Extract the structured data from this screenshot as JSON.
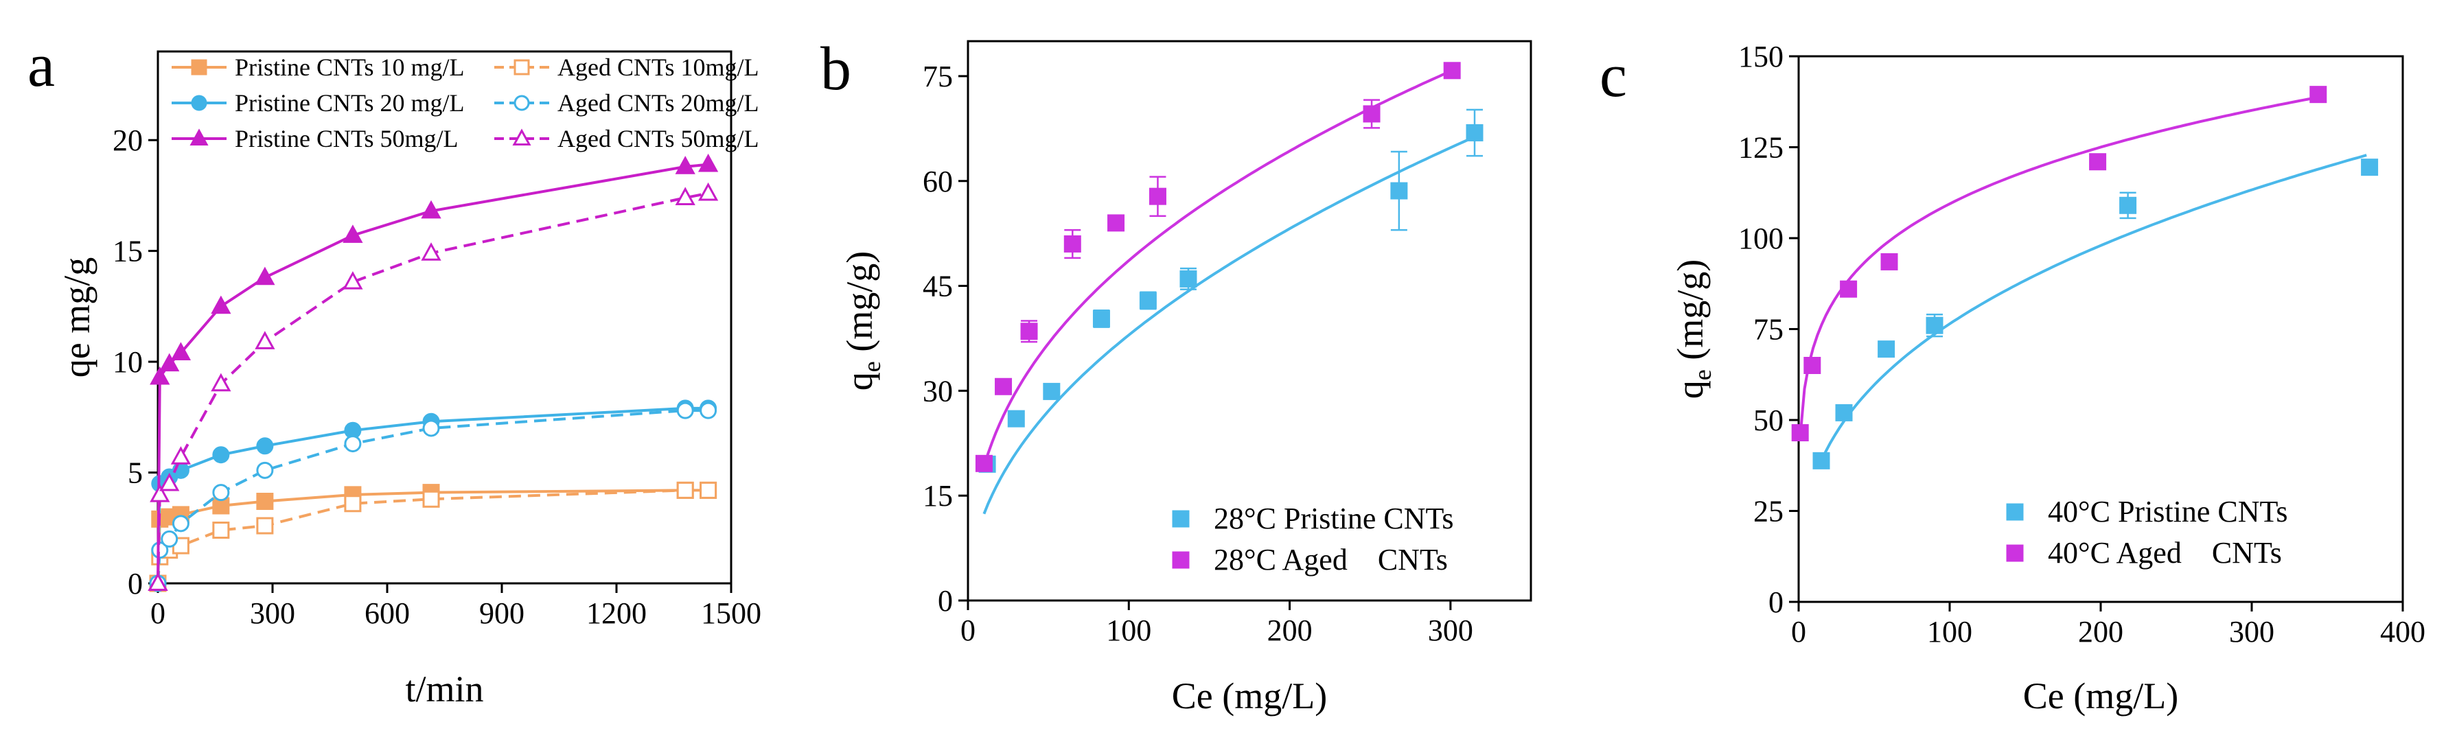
{
  "chart_data": [
    {
      "panel_label": "a",
      "type": "line",
      "xlabel": "t/min",
      "ylabel": "qe mg/g",
      "xlim": [
        0,
        1500
      ],
      "ylim": [
        0,
        24
      ],
      "xticks": [
        "0",
        "300",
        "600",
        "900",
        "1200",
        "1500"
      ],
      "yticks": [
        "0",
        "5",
        "10",
        "15",
        "20"
      ],
      "series": [
        {
          "name": "Pristine CNTs 10 mg/L",
          "color": "#f4a360",
          "marker": "square",
          "filled": true,
          "dashed": false,
          "x": [
            0,
            5,
            30,
            60,
            165,
            280,
            510,
            715,
            1380,
            1440
          ],
          "y": [
            0,
            2.9,
            3.0,
            3.1,
            3.5,
            3.7,
            4.0,
            4.1,
            4.2,
            4.2
          ]
        },
        {
          "name": "Aged CNTs 10mg/L",
          "color": "#f4a360",
          "marker": "square",
          "filled": false,
          "dashed": true,
          "x": [
            0,
            5,
            30,
            60,
            165,
            280,
            510,
            715,
            1380,
            1440
          ],
          "y": [
            0,
            1.2,
            1.5,
            1.7,
            2.4,
            2.6,
            3.6,
            3.8,
            4.2,
            4.2
          ]
        },
        {
          "name": "Pristine CNTs 20 mg/L",
          "color": "#3fb2e6",
          "marker": "circle",
          "filled": true,
          "dashed": false,
          "x": [
            0,
            5,
            30,
            60,
            165,
            280,
            510,
            715,
            1380,
            1440
          ],
          "y": [
            0,
            4.5,
            4.8,
            5.1,
            5.8,
            6.2,
            6.9,
            7.3,
            7.9,
            7.9
          ]
        },
        {
          "name": "Aged CNTs 20mg/L",
          "color": "#3fb2e6",
          "marker": "circle",
          "filled": false,
          "dashed": true,
          "x": [
            0,
            5,
            30,
            60,
            165,
            280,
            510,
            715,
            1380,
            1440
          ],
          "y": [
            0,
            1.5,
            2.0,
            2.7,
            4.1,
            5.1,
            6.3,
            7.0,
            7.8,
            7.8
          ]
        },
        {
          "name": "Pristine CNTs 50mg/L",
          "color": "#c81ec8",
          "marker": "triangle",
          "filled": true,
          "dashed": false,
          "x": [
            0,
            5,
            30,
            60,
            165,
            280,
            510,
            715,
            1380,
            1440
          ],
          "y": [
            0,
            9.3,
            9.9,
            10.4,
            12.5,
            13.8,
            15.7,
            16.8,
            18.8,
            18.9
          ]
        },
        {
          "name": "Aged CNTs 50mg/L",
          "color": "#c81ec8",
          "marker": "triangle",
          "filled": false,
          "dashed": true,
          "x": [
            0,
            5,
            30,
            60,
            165,
            280,
            510,
            715,
            1380,
            1440
          ],
          "y": [
            0,
            4.0,
            4.5,
            5.7,
            9.0,
            10.9,
            13.6,
            14.9,
            17.4,
            17.6
          ]
        }
      ],
      "legend_order": [
        0,
        1,
        2,
        3,
        4,
        5
      ]
    },
    {
      "panel_label": "b",
      "type": "scatter",
      "xlabel": "Ce (mg/L)",
      "ylabel_main": "q",
      "ylabel_sub": "e",
      "ylabel_tail": " (mg/g)",
      "xlim": [
        0,
        350
      ],
      "ylim": [
        0,
        80
      ],
      "xticks": [
        "0",
        "100",
        "200",
        "300"
      ],
      "yticks": [
        "0",
        "15",
        "30",
        "45",
        "60",
        "75"
      ],
      "series": [
        {
          "name": "28°C Pristine CNTs",
          "color": "#4ab8ea",
          "x": [
            12,
            30,
            52,
            83,
            112,
            137,
            268,
            315
          ],
          "y": [
            19.5,
            26.0,
            29.9,
            40.3,
            42.9,
            46.0,
            58.6,
            66.9
          ],
          "err": [
            0,
            0,
            0,
            1.2,
            1.2,
            1.5,
            5.6,
            3.3
          ],
          "fit": {
            "K": 4.05,
            "n": 0.486,
            "xstart": 10,
            "xend": 318
          }
        },
        {
          "name": "28°C Aged    CNTs",
          "color": "#cc33e0",
          "x": [
            10,
            22,
            38,
            65,
            92,
            118,
            251,
            301
          ],
          "y": [
            19.6,
            30.6,
            38.5,
            51.0,
            54.0,
            57.8,
            69.6,
            75.8
          ],
          "err": [
            0,
            0,
            1.5,
            2.0,
            0,
            2.8,
            2.0,
            0
          ],
          "fit": {
            "K": 7.6,
            "n": 0.403,
            "xstart": 10,
            "xend": 300
          }
        }
      ]
    },
    {
      "panel_label": "c",
      "type": "scatter",
      "xlabel": "Ce (mg/L)",
      "ylabel_main": "q",
      "ylabel_sub": "e",
      "ylabel_tail": " (mg/g)",
      "xlim": [
        0,
        400
      ],
      "ylim": [
        0,
        150
      ],
      "xticks": [
        "0",
        "100",
        "200",
        "300",
        "400"
      ],
      "yticks": [
        "0",
        "25",
        "50",
        "75",
        "100",
        "125",
        "150"
      ],
      "series": [
        {
          "name": "40°C Pristine CNTs",
          "color": "#4ab8ea",
          "x": [
            15,
            30,
            58,
            90,
            218,
            378
          ],
          "y": [
            38.8,
            52.0,
            69.5,
            76.0,
            109.0,
            119.5
          ],
          "err": [
            0,
            0,
            0,
            3.0,
            3.5,
            0
          ],
          "fit": {
            "K": 14.7,
            "n": 0.358,
            "xstart": 15,
            "xend": 376
          }
        },
        {
          "name": "40°C Aged    CNTs",
          "color": "#cc33e0",
          "x": [
            1,
            9,
            33,
            60,
            198,
            344
          ],
          "y": [
            46.5,
            65.0,
            86.0,
            93.5,
            121.0,
            139.5
          ],
          "err": [
            0,
            0,
            0,
            0,
            0,
            0
          ],
          "fit": {
            "K": 45.2,
            "n": 0.192,
            "xstart": 1,
            "xend": 343
          }
        }
      ]
    }
  ]
}
